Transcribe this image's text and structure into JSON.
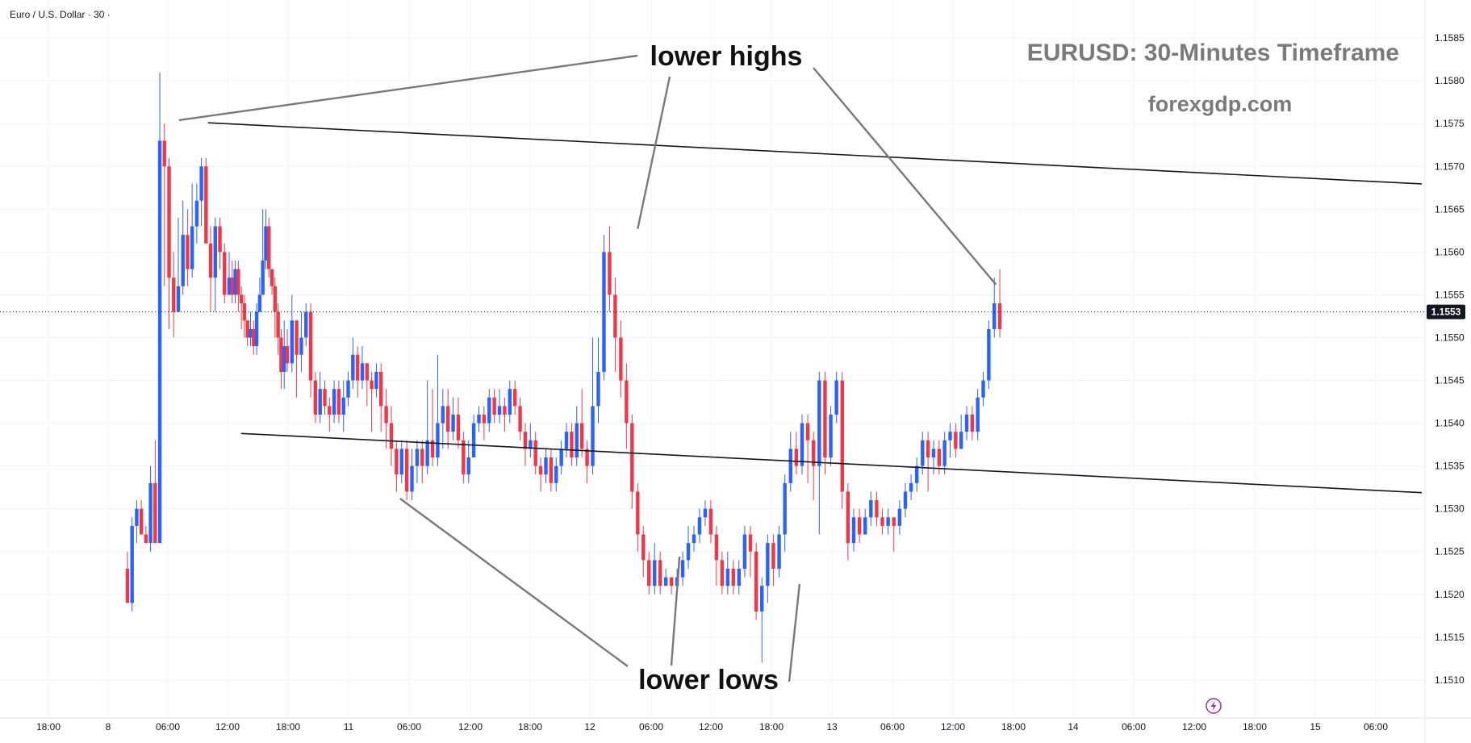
{
  "symbol_legend": "Euro / U.S. Dollar · 30 ·",
  "title": "EURUSD: 30-Minutes Timeframe",
  "watermark": "forexgdp.com",
  "annotations": {
    "highs": "lower highs",
    "lows": "lower lows"
  },
  "current_price": "1.1553",
  "flash_icon": "lightning-icon",
  "colors": {
    "up": "#2962ff",
    "down": "#f23645",
    "trendline": "#131722",
    "arrow": "#787878",
    "badge": "#131722",
    "grid": "#f0f3fa"
  },
  "chart_data": {
    "type": "candlestick",
    "timeframe": "30",
    "y_ticks": [
      "1.1510",
      "1.1515",
      "1.1520",
      "1.1525",
      "1.1530",
      "1.1535",
      "1.1540",
      "1.1545",
      "1.1550",
      "1.1555",
      "1.1560",
      "1.1565",
      "1.1570",
      "1.1575",
      "1.1580",
      "1.1585"
    ],
    "x_ticks": [
      "18:00",
      "8",
      "06:00",
      "12:00",
      "18:00",
      "11",
      "06:00",
      "12:00",
      "18:00",
      "12",
      "06:00",
      "12:00",
      "18:00",
      "13",
      "06:00",
      "12:00",
      "18:00",
      "14",
      "06:00",
      "12:00",
      "18:00",
      "15",
      "06:00"
    ],
    "ylim": [
      1.15065,
      1.15885
    ],
    "anchors": [
      [
        22,
        1.1525
      ],
      [
        41,
        1.153
      ],
      [
        61,
        1.1556
      ],
      [
        101,
        1.1537
      ],
      [
        128,
        1.1529
      ],
      [
        160,
        1.1523
      ],
      [
        188,
        1.1555
      ],
      [
        212,
        1.1543
      ],
      [
        229,
        1.1527
      ],
      [
        246,
        1.1533
      ]
    ],
    "candles": [
      [
        1.1523,
        1.1519,
        1.1525,
        1.1519
      ],
      [
        1.1519,
        1.1528,
        1.1529,
        1.1518
      ],
      [
        1.1528,
        1.153,
        1.1531,
        1.1526
      ],
      [
        1.153,
        1.1527,
        1.1531,
        1.1527
      ],
      [
        1.1527,
        1.1526,
        1.1528,
        1.1526
      ],
      [
        1.1526,
        1.1533,
        1.1535,
        1.1525
      ],
      [
        1.1533,
        1.1526,
        1.1538,
        1.1526
      ],
      [
        1.1526,
        1.1573,
        1.1581,
        1.1526
      ],
      [
        1.1573,
        1.157,
        1.1575,
        1.1556
      ],
      [
        1.157,
        1.1557,
        1.1571,
        1.1551
      ],
      [
        1.1557,
        1.1553,
        1.156,
        1.155
      ],
      [
        1.1553,
        1.1556,
        1.1564,
        1.1553
      ],
      [
        1.1556,
        1.1562,
        1.1566,
        1.1555
      ],
      [
        1.1562,
        1.1558,
        1.1565,
        1.1556
      ],
      [
        1.1558,
        1.1563,
        1.1568,
        1.1557
      ],
      [
        1.1563,
        1.1566,
        1.1568,
        1.1561
      ],
      [
        1.1566,
        1.157,
        1.1571,
        1.1563
      ],
      [
        1.157,
        1.1561,
        1.1571,
        1.1561
      ],
      [
        1.1561,
        1.1557,
        1.1563,
        1.1553
      ],
      [
        1.1557,
        1.1563,
        1.1564,
        1.1553
      ],
      [
        1.1563,
        1.156,
        1.1564,
        1.1558
      ],
      [
        1.156,
        1.1555,
        1.1561,
        1.1554
      ],
      [
        1.1555,
        1.1557,
        1.156,
        1.1555
      ],
      [
        1.1557,
        1.1555,
        1.1559,
        1.1554
      ],
      [
        1.1555,
        1.1558,
        1.1559,
        1.1554
      ],
      [
        1.1558,
        1.1555,
        1.1559,
        1.1553
      ],
      [
        1.1555,
        1.1554,
        1.1556,
        1.1551
      ],
      [
        1.1554,
        1.1552,
        1.1555,
        1.155
      ],
      [
        1.1552,
        1.155,
        1.1552,
        1.1549
      ],
      [
        1.155,
        1.1551,
        1.1553,
        1.1549
      ],
      [
        1.1551,
        1.1549,
        1.1552,
        1.1548
      ],
      [
        1.1549,
        1.1553,
        1.1554,
        1.1548
      ],
      [
        1.1553,
        1.1555,
        1.1557,
        1.1553
      ],
      [
        1.1555,
        1.1559,
        1.1565,
        1.1555
      ],
      [
        1.1559,
        1.1563,
        1.1565,
        1.1558
      ],
      [
        1.1563,
        1.1558,
        1.1564,
        1.1557
      ],
      [
        1.1558,
        1.1556,
        1.1558,
        1.1555
      ],
      [
        1.1556,
        1.1553,
        1.1557,
        1.155
      ],
      [
        1.1553,
        1.155,
        1.1554,
        1.1548
      ],
      [
        1.155,
        1.1546,
        1.1551,
        1.1544
      ],
      [
        1.1546,
        1.1549,
        1.1552,
        1.1544
      ],
      [
        1.1549,
        1.1547,
        1.1551,
        1.1546
      ],
      [
        1.1547,
        1.1552,
        1.1555,
        1.1546
      ],
      [
        1.1552,
        1.1548,
        1.1552,
        1.1543
      ],
      [
        1.1548,
        1.155,
        1.1553,
        1.1546
      ],
      [
        1.155,
        1.1553,
        1.1554,
        1.1549
      ],
      [
        1.1553,
        1.1545,
        1.1554,
        1.1543
      ],
      [
        1.1545,
        1.1541,
        1.1546,
        1.154
      ],
      [
        1.1541,
        1.1544,
        1.1546,
        1.154
      ],
      [
        1.1544,
        1.1542,
        1.1545,
        1.1541
      ],
      [
        1.1542,
        1.1541,
        1.1543,
        1.1539
      ],
      [
        1.1541,
        1.1544,
        1.1545,
        1.154
      ],
      [
        1.1544,
        1.1541,
        1.1545,
        1.154
      ],
      [
        1.1541,
        1.1543,
        1.1545,
        1.1539
      ],
      [
        1.1543,
        1.1545,
        1.1546,
        1.1542
      ],
      [
        1.1545,
        1.1548,
        1.155,
        1.1544
      ],
      [
        1.1548,
        1.1545,
        1.1549,
        1.1543
      ],
      [
        1.1545,
        1.1547,
        1.1549,
        1.1544
      ],
      [
        1.1547,
        1.1545,
        1.1547,
        1.1542
      ],
      [
        1.1545,
        1.1544,
        1.1546,
        1.1539
      ],
      [
        1.1544,
        1.1546,
        1.1547,
        1.1543
      ],
      [
        1.1546,
        1.1542,
        1.1547,
        1.1539
      ],
      [
        1.1542,
        1.154,
        1.1544,
        1.1537
      ],
      [
        1.154,
        1.1537,
        1.1542,
        1.1535
      ],
      [
        1.1537,
        1.1534,
        1.1538,
        1.1532
      ],
      [
        1.1534,
        1.1537,
        1.1538,
        1.1533
      ],
      [
        1.1537,
        1.1532,
        1.1538,
        1.1531
      ],
      [
        1.1532,
        1.1535,
        1.1537,
        1.1531
      ],
      [
        1.1535,
        1.1537,
        1.1538,
        1.1533
      ],
      [
        1.1537,
        1.1535,
        1.1538,
        1.1533
      ],
      [
        1.1535,
        1.1538,
        1.1545,
        1.1534
      ],
      [
        1.1538,
        1.1536,
        1.1544,
        1.1535
      ],
      [
        1.1536,
        1.154,
        1.1548,
        1.1535
      ],
      [
        1.154,
        1.1542,
        1.1544,
        1.1537
      ],
      [
        1.1542,
        1.1539,
        1.1544,
        1.1537
      ],
      [
        1.1539,
        1.1541,
        1.1543,
        1.1538
      ],
      [
        1.1541,
        1.1538,
        1.1543,
        1.1537
      ],
      [
        1.1538,
        1.1534,
        1.1539,
        1.1533
      ],
      [
        1.1534,
        1.1536,
        1.1538,
        1.1533
      ],
      [
        1.1536,
        1.154,
        1.1541,
        1.1536
      ],
      [
        1.154,
        1.1541,
        1.1542,
        1.1539
      ],
      [
        1.1541,
        1.154,
        1.1542,
        1.1538
      ],
      [
        1.154,
        1.1543,
        1.1544,
        1.1539
      ],
      [
        1.1543,
        1.1541,
        1.1544,
        1.154
      ],
      [
        1.1541,
        1.1542,
        1.1544,
        1.154
      ],
      [
        1.1542,
        1.1541,
        1.1543,
        1.1539
      ],
      [
        1.1541,
        1.1544,
        1.1545,
        1.154
      ],
      [
        1.1544,
        1.1542,
        1.1545,
        1.1541
      ],
      [
        1.1542,
        1.1539,
        1.1543,
        1.1538
      ],
      [
        1.1539,
        1.1537,
        1.154,
        1.1535
      ],
      [
        1.1537,
        1.1538,
        1.154,
        1.1536
      ],
      [
        1.1538,
        1.1535,
        1.1539,
        1.1534
      ],
      [
        1.1535,
        1.1534,
        1.1536,
        1.1532
      ],
      [
        1.1534,
        1.1536,
        1.1537,
        1.1533
      ],
      [
        1.1536,
        1.1533,
        1.1537,
        1.1532
      ],
      [
        1.1533,
        1.1535,
        1.1536,
        1.1532
      ],
      [
        1.1535,
        1.1537,
        1.1538,
        1.1534
      ],
      [
        1.1537,
        1.1539,
        1.154,
        1.1536
      ],
      [
        1.1539,
        1.1536,
        1.154,
        1.1535
      ],
      [
        1.1536,
        1.154,
        1.1542,
        1.1535
      ],
      [
        1.154,
        1.1537,
        1.1544,
        1.1536
      ],
      [
        1.1537,
        1.1535,
        1.1538,
        1.1533
      ],
      [
        1.1535,
        1.1542,
        1.155,
        1.1534
      ],
      [
        1.1542,
        1.1546,
        1.155,
        1.154
      ],
      [
        1.1546,
        1.156,
        1.1562,
        1.1545
      ],
      [
        1.156,
        1.1555,
        1.1563,
        1.1553
      ],
      [
        1.1555,
        1.155,
        1.1557,
        1.1546
      ],
      [
        1.155,
        1.1545,
        1.1552,
        1.1543
      ],
      [
        1.1545,
        1.154,
        1.1547,
        1.1537
      ],
      [
        1.154,
        1.1532,
        1.1541,
        1.153
      ],
      [
        1.1532,
        1.1527,
        1.1533,
        1.1525
      ],
      [
        1.1527,
        1.1524,
        1.1528,
        1.1522
      ],
      [
        1.1524,
        1.1521,
        1.1525,
        1.152
      ],
      [
        1.1521,
        1.1524,
        1.1526,
        1.152
      ],
      [
        1.1524,
        1.1521,
        1.1525,
        1.152
      ],
      [
        1.1521,
        1.1522,
        1.1523,
        1.1521
      ],
      [
        1.1522,
        1.1521,
        1.1522,
        1.152
      ],
      [
        1.1521,
        1.1522,
        1.1523,
        1.1521
      ],
      [
        1.1522,
        1.1524,
        1.1525,
        1.1521
      ],
      [
        1.1524,
        1.1526,
        1.1528,
        1.1523
      ],
      [
        1.1526,
        1.1527,
        1.1528,
        1.1525
      ],
      [
        1.1527,
        1.1529,
        1.153,
        1.1526
      ],
      [
        1.1529,
        1.153,
        1.1531,
        1.1528
      ],
      [
        1.153,
        1.1527,
        1.1531,
        1.1526
      ],
      [
        1.1527,
        1.1524,
        1.1528,
        1.1521
      ],
      [
        1.1524,
        1.1521,
        1.1525,
        1.152
      ],
      [
        1.1521,
        1.1523,
        1.1525,
        1.152
      ],
      [
        1.1523,
        1.1521,
        1.1524,
        1.152
      ],
      [
        1.1521,
        1.1523,
        1.1524,
        1.152
      ],
      [
        1.1523,
        1.1527,
        1.1528,
        1.1522
      ],
      [
        1.1527,
        1.1525,
        1.1528,
        1.1522
      ],
      [
        1.1525,
        1.1518,
        1.1526,
        1.1517
      ],
      [
        1.1518,
        1.1521,
        1.1522,
        1.1512
      ],
      [
        1.1521,
        1.1526,
        1.1527,
        1.1519
      ],
      [
        1.1526,
        1.1523,
        1.1527,
        1.1521
      ],
      [
        1.1523,
        1.1527,
        1.1528,
        1.1522
      ],
      [
        1.1527,
        1.1533,
        1.1534,
        1.1525
      ],
      [
        1.1533,
        1.1537,
        1.1539,
        1.1532
      ],
      [
        1.1537,
        1.1535,
        1.1539,
        1.1534
      ],
      [
        1.1535,
        1.154,
        1.1541,
        1.1534
      ],
      [
        1.154,
        1.1538,
        1.1541,
        1.1533
      ],
      [
        1.1538,
        1.1535,
        1.1539,
        1.1531
      ],
      [
        1.1535,
        1.1545,
        1.1546,
        1.1527
      ],
      [
        1.1545,
        1.1536,
        1.1546,
        1.1534
      ],
      [
        1.1536,
        1.1541,
        1.1542,
        1.1535
      ],
      [
        1.1541,
        1.1545,
        1.1546,
        1.154
      ],
      [
        1.1545,
        1.1532,
        1.1546,
        1.153
      ],
      [
        1.1532,
        1.1526,
        1.1533,
        1.1524
      ],
      [
        1.1526,
        1.1529,
        1.153,
        1.1525
      ],
      [
        1.1529,
        1.1527,
        1.153,
        1.1526
      ],
      [
        1.1527,
        1.1529,
        1.153,
        1.1527
      ],
      [
        1.1529,
        1.1531,
        1.1532,
        1.1528
      ],
      [
        1.1531,
        1.1529,
        1.1532,
        1.1528
      ],
      [
        1.1529,
        1.1528,
        1.153,
        1.1527
      ],
      [
        1.1528,
        1.1529,
        1.153,
        1.1527
      ],
      [
        1.1529,
        1.1528,
        1.1529,
        1.1525
      ],
      [
        1.1528,
        1.153,
        1.1531,
        1.1527
      ],
      [
        1.153,
        1.1532,
        1.1533,
        1.1529
      ],
      [
        1.1532,
        1.1533,
        1.1534,
        1.1531
      ],
      [
        1.1533,
        1.1535,
        1.1536,
        1.1532
      ],
      [
        1.1535,
        1.1538,
        1.1539,
        1.1534
      ],
      [
        1.1538,
        1.1536,
        1.1539,
        1.1532
      ],
      [
        1.1536,
        1.1537,
        1.1538,
        1.1534
      ],
      [
        1.1537,
        1.1535,
        1.1538,
        1.1534
      ],
      [
        1.1535,
        1.1538,
        1.1539,
        1.1534
      ],
      [
        1.1538,
        1.1539,
        1.154,
        1.1536
      ],
      [
        1.1539,
        1.1537,
        1.154,
        1.1536
      ],
      [
        1.1537,
        1.1539,
        1.1541,
        1.1537
      ],
      [
        1.1539,
        1.1541,
        1.1542,
        1.1538
      ],
      [
        1.1541,
        1.1539,
        1.1542,
        1.1538
      ],
      [
        1.1539,
        1.1543,
        1.1544,
        1.1538
      ],
      [
        1.1543,
        1.1545,
        1.1546,
        1.1542
      ],
      [
        1.1545,
        1.1551,
        1.1552,
        1.1544
      ],
      [
        1.1551,
        1.1554,
        1.1557,
        1.155
      ],
      [
        1.1554,
        1.1551,
        1.1558,
        1.155
      ]
    ],
    "candle_labels": [
      0,
      21,
      43,
      51,
      64,
      85,
      98,
      108,
      129,
      141,
      165,
      171
    ],
    "trendlines": [
      {
        "name": "upper-trendline",
        "from": [
          15.2,
          1.15751
        ],
        "to": [
          320,
          1.15514
        ]
      },
      {
        "name": "lower-trendline",
        "from": [
          17.7,
          1.15388
        ],
        "to": [
          320,
          1.15154
        ]
      }
    ]
  }
}
